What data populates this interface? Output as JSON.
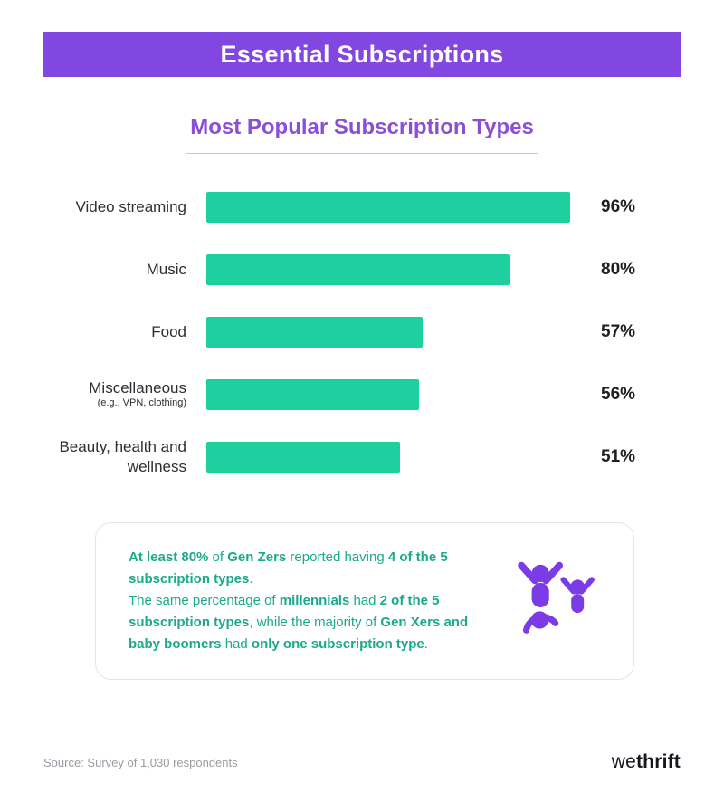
{
  "header": {
    "title": "Essential Subscriptions",
    "bg_color": "#8247e0"
  },
  "chart_data": {
    "type": "bar",
    "orientation": "horizontal",
    "title": "Most Popular Subscription Types",
    "categories": [
      "Video streaming",
      "Music",
      "Food",
      "Miscellaneous (e.g., VPN, clothing)",
      "Beauty, health and wellness"
    ],
    "values": [
      96,
      80,
      57,
      56,
      51
    ],
    "value_labels": [
      "96%",
      "80%",
      "57%",
      "56%",
      "51%"
    ],
    "xlim": [
      0,
      100
    ],
    "grid": false,
    "legend": false,
    "bar_color": "#1ecf9f",
    "accent_color": "#8a4fd6",
    "display_labels": [
      {
        "line1": "Video streaming",
        "line2": ""
      },
      {
        "line1": "Music",
        "line2": ""
      },
      {
        "line1": "Food",
        "line2": ""
      },
      {
        "line1": "Miscellaneous",
        "line2": "(e.g., VPN, clothing)"
      },
      {
        "line1": "Beauty,",
        "line2": "health and wellness"
      }
    ]
  },
  "callout": {
    "text_color": "#1aa98c",
    "icon": "family-icon",
    "icon_color": "#7b3ce8",
    "paragraphs": [
      [
        {
          "t": "At least 80%",
          "b": true
        },
        {
          "t": " of ",
          "b": false
        },
        {
          "t": "Gen Zers",
          "b": true
        },
        {
          "t": " reported having ",
          "b": false
        },
        {
          "t": "4 of the 5 subscription types",
          "b": true
        },
        {
          "t": ".",
          "b": false
        }
      ],
      [
        {
          "t": "The same percentage of ",
          "b": false
        },
        {
          "t": "millennials",
          "b": true
        },
        {
          "t": " had ",
          "b": false
        },
        {
          "t": "2 of the 5 subscription types",
          "b": true
        },
        {
          "t": ", while the majority of ",
          "b": false
        },
        {
          "t": "Gen Xers and baby boomers",
          "b": true
        },
        {
          "t": " had ",
          "b": false
        },
        {
          "t": "only one subscription type",
          "b": true
        },
        {
          "t": ".",
          "b": false
        }
      ]
    ]
  },
  "footer": {
    "source": "Source: Survey of 1,030 respondents",
    "brand_light": "we",
    "brand_bold": "thrift"
  }
}
